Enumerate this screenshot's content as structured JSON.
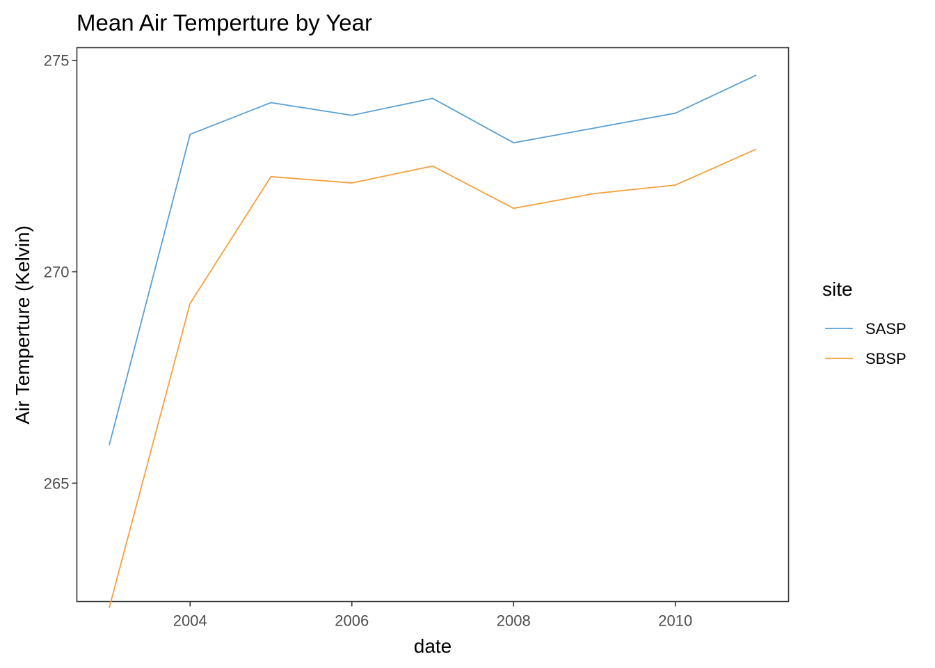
{
  "chart_data": {
    "type": "line",
    "title": "Mean Air Temperture by Year",
    "xlabel": "date",
    "ylabel": "Air Temperture (Kelvin)",
    "x": [
      2003,
      2004,
      2005,
      2006,
      2007,
      2008,
      2009,
      2010,
      2011
    ],
    "xlim": [
      2002.6,
      2011.4
    ],
    "ylim": [
      262.2,
      275.3
    ],
    "xticks": [
      2004,
      2006,
      2008,
      2010
    ],
    "yticks": [
      265,
      270,
      275
    ],
    "grid": false,
    "legend": {
      "title": "site",
      "position": "right"
    },
    "series": [
      {
        "name": "SASP",
        "color": "#5a9fd4",
        "values": [
          265.9,
          273.25,
          274.0,
          273.7,
          274.1,
          273.05,
          273.4,
          273.75,
          274.65
        ]
      },
      {
        "name": "SBSP",
        "color": "#f5a03c",
        "values": [
          262.05,
          269.25,
          272.25,
          272.1,
          272.5,
          271.5,
          271.85,
          272.05,
          272.9
        ]
      }
    ]
  }
}
